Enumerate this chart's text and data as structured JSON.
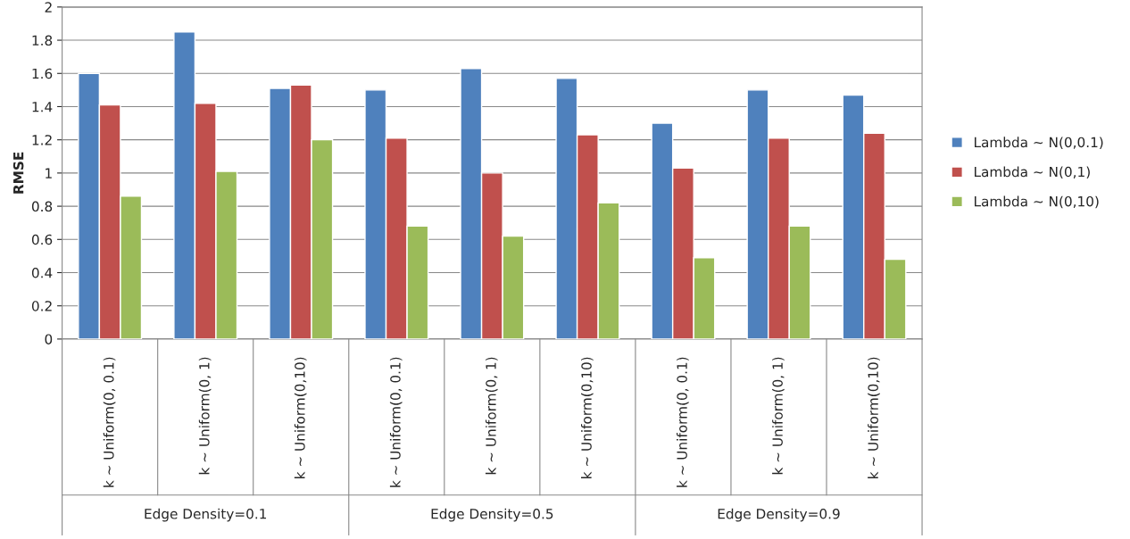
{
  "chart_data": {
    "type": "bar",
    "ylabel": "RMSE",
    "categories": [
      "k ~ Uniform(0, 0.1)",
      "k ~ Uniform(0, 1)",
      "k ~ Uniform(0,10)",
      "k ~ Uniform(0, 0.1)",
      "k ~ Uniform(0, 1)",
      "k ~ Uniform(0,10)",
      "k ~ Uniform(0, 0.1)",
      "k ~ Uniform(0, 1)",
      "k ~ Uniform(0,10)"
    ],
    "series": [
      {
        "name": "Lambda ~ N(0,0.1)",
        "color": "#4f81bd",
        "values": [
          1.6,
          1.85,
          1.51,
          1.5,
          1.63,
          1.57,
          1.3,
          1.5,
          1.47
        ]
      },
      {
        "name": "Lambda ~ N(0,1)",
        "color": "#c0504d",
        "values": [
          1.41,
          1.42,
          1.53,
          1.21,
          1.0,
          1.23,
          1.03,
          1.21,
          1.24
        ]
      },
      {
        "name": "Lambda ~ N(0,10)",
        "color": "#9bbb59",
        "values": [
          0.86,
          1.01,
          1.2,
          0.68,
          0.62,
          0.82,
          0.49,
          0.68,
          0.48
        ]
      }
    ],
    "annotations": [
      "Edge Density=0.1",
      "Edge Density=0.5",
      "Edge Density=0.9"
    ],
    "ylim": [
      0,
      2
    ],
    "yticks": [
      0,
      0.2,
      0.4,
      0.6,
      0.8,
      1,
      1.2,
      1.4,
      1.6,
      1.8,
      2
    ],
    "grid": "y",
    "legend": "right"
  }
}
